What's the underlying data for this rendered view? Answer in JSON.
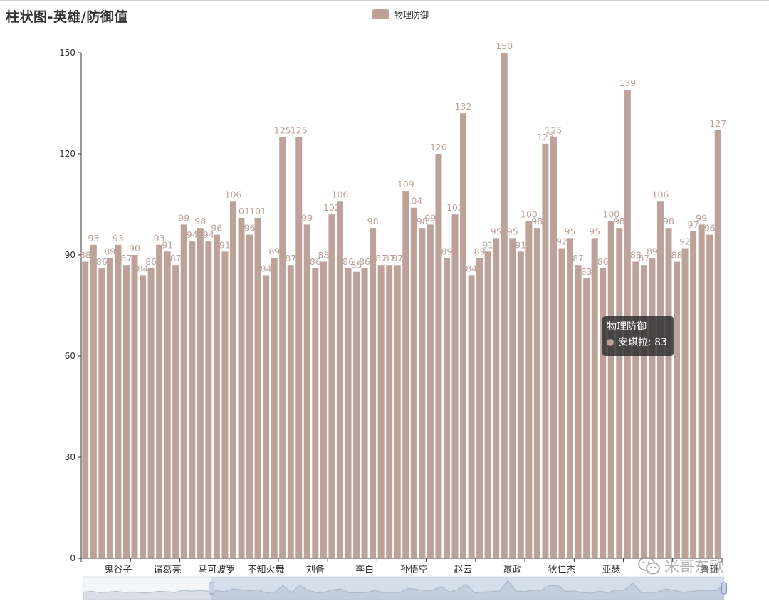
{
  "chart_data": {
    "type": "bar",
    "title": "柱状图-英雄/防御值",
    "legend": "top-center",
    "series": [
      {
        "name": "物理防御",
        "color": "#bda29a",
        "values": [
          88,
          93,
          86,
          89,
          93,
          87,
          90,
          84,
          86,
          93,
          91,
          87,
          99,
          94,
          98,
          94,
          96,
          91,
          106,
          101,
          96,
          101,
          84,
          89,
          125,
          87,
          125,
          99,
          86,
          88,
          102,
          106,
          86,
          85,
          86,
          98,
          87,
          87,
          87,
          109,
          104,
          98,
          99,
          120,
          89,
          102,
          132,
          84,
          89,
          91,
          95,
          150,
          95,
          91,
          100,
          98,
          123,
          125,
          92,
          95,
          87,
          83,
          95,
          86,
          100,
          98,
          139,
          88,
          87,
          89,
          106,
          98,
          88,
          92,
          97,
          99,
          96,
          127
        ]
      }
    ],
    "x_tick_labels": [
      "鬼谷子",
      "诸葛亮",
      "马可波罗",
      "不知火舞",
      "刘备",
      "李白",
      "孙悟空",
      "赵云",
      "嬴政",
      "狄仁杰",
      "亚瑟",
      "",
      "鲁班"
    ],
    "ylim": [
      0,
      150
    ],
    "y_ticks": [
      0,
      30,
      60,
      90,
      120,
      150
    ],
    "grid": false,
    "datazoom": {
      "start_percent": 20,
      "end_percent": 100
    }
  },
  "tooltip": {
    "series_name": "物理防御",
    "category": "安琪拉",
    "value": "83",
    "text": "安琪拉: 83"
  },
  "watermark": {
    "icon": "wechat-icon",
    "text": "米哥东欧"
  }
}
